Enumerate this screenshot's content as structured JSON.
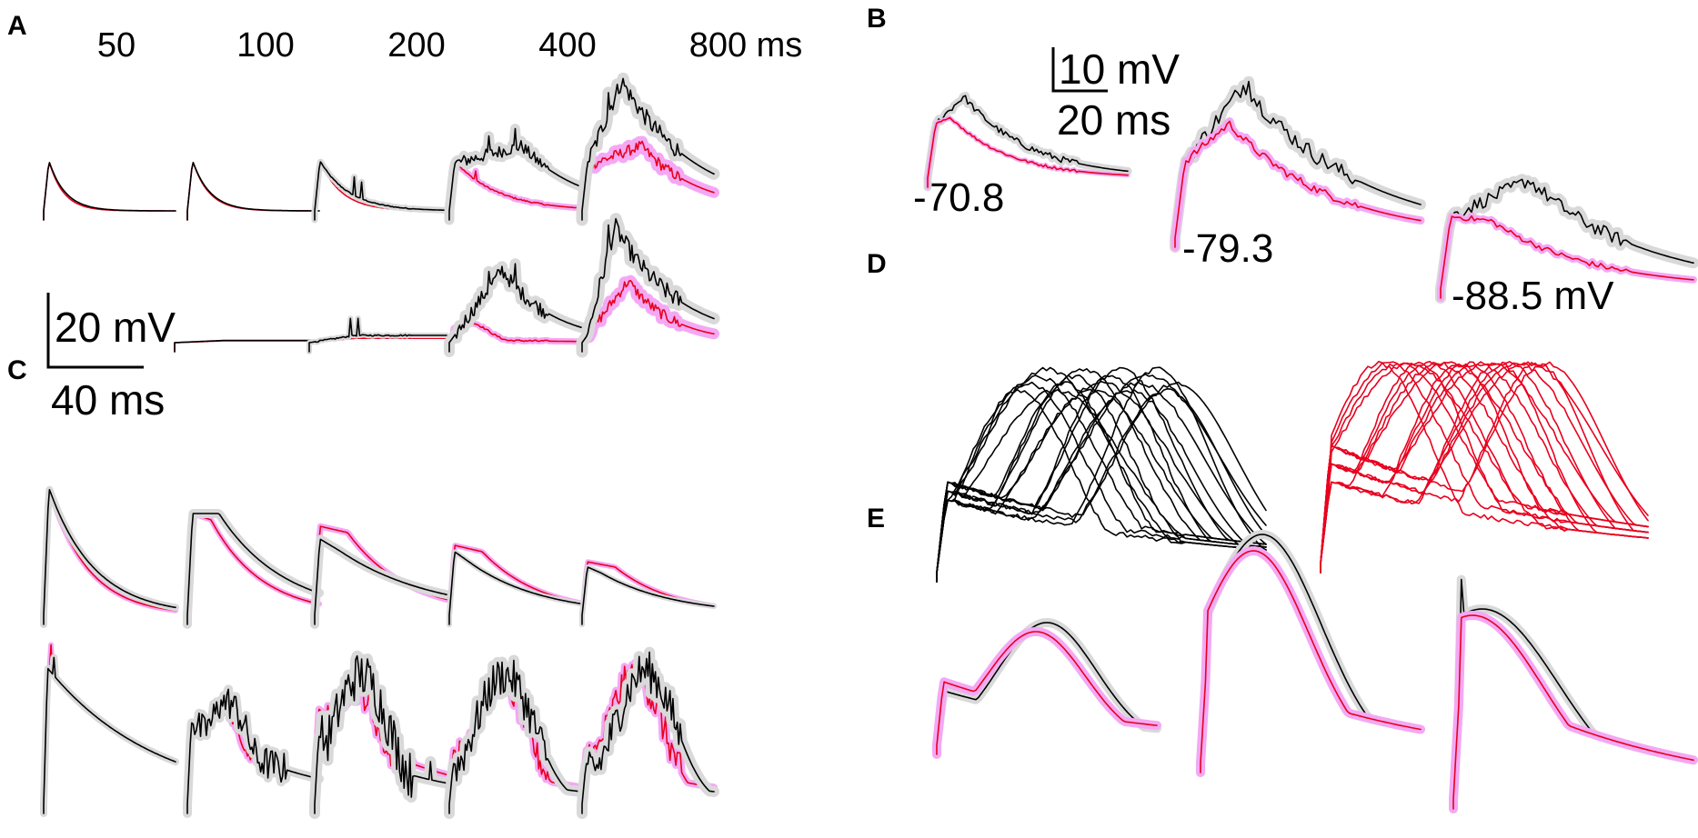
{
  "chart_data": {
    "type": "line",
    "colors": {
      "control": "#000000",
      "treated": "#e8001e",
      "control_band": "#d9d9d9",
      "treated_band": "#f4a8f4"
    },
    "panels": [
      {
        "label": "A",
        "durations": [
          "50",
          "100",
          "200",
          "400",
          "800 ms"
        ],
        "scalebar": {
          "voltage": "20 mV",
          "time": "40 ms"
        }
      },
      {
        "label": "B",
        "scalebar": {
          "voltage": "10 mV",
          "time": "20 ms"
        },
        "holding_potentials": [
          "-70.8",
          "-79.3",
          "-88.5 mV"
        ]
      },
      {
        "label": "C"
      },
      {
        "label": "D"
      },
      {
        "label": "E"
      }
    ]
  }
}
